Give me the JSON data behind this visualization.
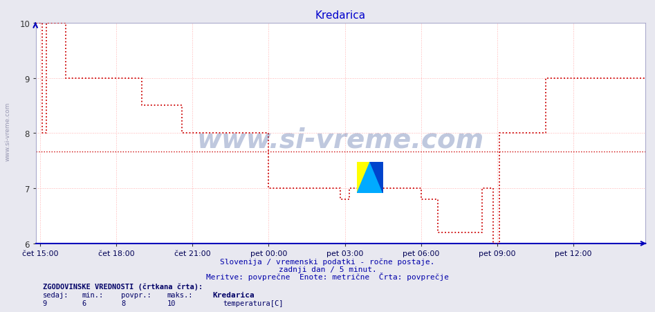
{
  "title": "Kredarica",
  "title_color": "#0000cc",
  "bg_color": "#e8e8f0",
  "plot_bg_color": "#ffffff",
  "grid_color": "#ffb0b0",
  "axis_color": "#0000aa",
  "average_line_value": 7.67,
  "average_line_color": "#cc0000",
  "ylim": [
    6,
    10
  ],
  "yticks": [
    6,
    7,
    8,
    9,
    10
  ],
  "xlabel_color": "#000077",
  "xtick_labels": [
    "čet 15:00",
    "čet 18:00",
    "čet 21:00",
    "pet 00:00",
    "pet 03:00",
    "pet 06:00",
    "pet 09:00",
    "pet 12:00"
  ],
  "subtitle_lines": [
    "Slovenija / vremenski podatki - ročne postaje.",
    "zadnji dan / 5 minut.",
    "Meritve: povprečne  Enote: metrične  Črta: povprečje"
  ],
  "subtitle_color": "#0000aa",
  "watermark": "www.si-vreme.com",
  "watermark_color": "#1a3a8a",
  "legend_title": "ZGODOVINSKE VREDNOSTI (črtkana črta):",
  "legend_headers": [
    "sedaj:",
    "min.:",
    "povpr.:",
    "maks.:",
    "Kredarica"
  ],
  "legend_values": [
    "9",
    "6",
    "8",
    "10",
    "temperatura[C]"
  ],
  "legend_color": "#000066",
  "line_color": "#cc0000",
  "left_label": "www.si-vreme.com"
}
